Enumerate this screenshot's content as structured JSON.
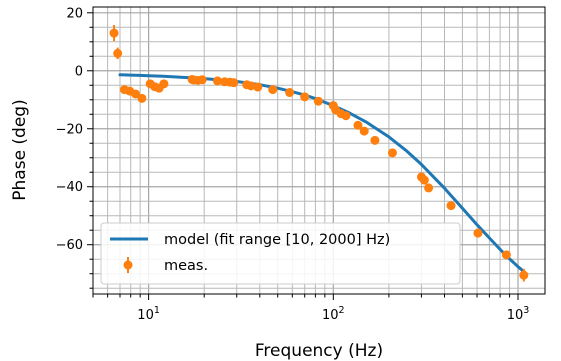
{
  "chart_data": {
    "type": "line",
    "xlabel": "Frequency (Hz)",
    "ylabel": "Phase (deg)",
    "xscale": "log",
    "xlim": [
      5,
      1400
    ],
    "ylim": [
      -77,
      22
    ],
    "grid": true,
    "legend_position": "lower-left",
    "x_ticks": [
      {
        "value": 10,
        "label": "10",
        "exp": "1"
      },
      {
        "value": 100,
        "label": "10",
        "exp": "2"
      },
      {
        "value": 1000,
        "label": "10",
        "exp": "3"
      }
    ],
    "y_ticks": [
      {
        "value": 20,
        "label": "20"
      },
      {
        "value": 0,
        "label": "0"
      },
      {
        "value": -20,
        "label": "−20"
      },
      {
        "value": -40,
        "label": "−40"
      },
      {
        "value": -60,
        "label": "−60"
      }
    ],
    "series": [
      {
        "name": "model (fit range [10, 2000] Hz)",
        "kind": "line",
        "color": "#1f77b4",
        "x": [
          7,
          8,
          9,
          10,
          12,
          15,
          20,
          25,
          30,
          40,
          50,
          60,
          70,
          80,
          100,
          120,
          150,
          200,
          250,
          300,
          400,
          500,
          600,
          700,
          800,
          900,
          1000,
          1100
        ],
        "y": [
          -1.4,
          -1.5,
          -1.6,
          -1.7,
          -1.9,
          -2.2,
          -2.7,
          -3.2,
          -3.7,
          -4.8,
          -6.0,
          -7.2,
          -8.4,
          -9.6,
          -12.0,
          -14.3,
          -17.6,
          -22.8,
          -27.7,
          -32.3,
          -40.5,
          -47.4,
          -53.1,
          -57.7,
          -61.6,
          -64.9,
          -67.6,
          -69.8
        ]
      },
      {
        "name": "meas.",
        "kind": "errorbar",
        "color": "#ff7f0e",
        "x": [
          6.5,
          6.8,
          7.4,
          7.9,
          8.5,
          9.2,
          10.2,
          10.8,
          11.4,
          12.1,
          17.2,
          17.6,
          18.5,
          19.5,
          23.6,
          25.8,
          27.5,
          28.9,
          34,
          35.8,
          39,
          47,
          58,
          70,
          83,
          100,
          103,
          110,
          117,
          136,
          147,
          168,
          209,
          300,
          311,
          328,
          434,
          607,
          865,
          1075
        ],
        "y": [
          13,
          6,
          -6.5,
          -7,
          -8,
          -9.5,
          -4.5,
          -5.5,
          -6,
          -4.5,
          -3,
          -3.2,
          -3.3,
          -3.1,
          -3.5,
          -3.8,
          -3.9,
          -4.1,
          -4.8,
          -5.2,
          -5.6,
          -6.5,
          -7.5,
          -9,
          -10.5,
          -12,
          -13.5,
          -14.8,
          -15.5,
          -18.8,
          -20.8,
          -24,
          -28.3,
          -36.6,
          -37.7,
          -40.4,
          -46.5,
          -56,
          -63.5,
          -70.5
        ],
        "yerr": [
          2.8,
          2.0,
          0,
          0,
          0,
          0,
          0,
          0,
          0,
          0,
          0,
          0,
          0,
          0,
          0,
          0,
          0,
          0,
          0,
          0,
          0,
          0,
          0,
          0,
          0,
          0,
          0,
          0,
          0,
          0,
          0,
          0,
          0,
          0,
          0,
          0,
          0,
          0,
          0,
          2.2
        ]
      }
    ]
  }
}
